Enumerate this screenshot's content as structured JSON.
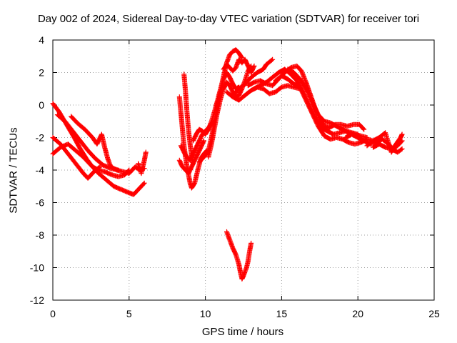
{
  "chart_data": {
    "type": "scatter",
    "title": "Day 002 of 2024, Sidereal Day-to-day VTEC variation (SDTVAR) for receiver tori",
    "xlabel": "GPS time / hours",
    "ylabel": "SDTVAR / TECUs",
    "xlim": [
      0,
      25
    ],
    "ylim": [
      -12,
      4
    ],
    "xticks": [
      0,
      5,
      10,
      15,
      20,
      25
    ],
    "yticks": [
      -12,
      -10,
      -8,
      -6,
      -4,
      -2,
      0,
      2,
      4
    ],
    "grid": true,
    "marker": "plus",
    "color": "#ff0000",
    "tracks": [
      [
        [
          0.0,
          0.1
        ],
        [
          0.4,
          -0.4
        ],
        [
          0.9,
          -1.2
        ],
        [
          1.4,
          -2.0
        ],
        [
          1.8,
          -2.7
        ],
        [
          2.2,
          -3.3
        ],
        [
          2.6,
          -3.8
        ],
        [
          3.0,
          -4.0
        ],
        [
          3.4,
          -4.1
        ],
        [
          3.9,
          -4.3
        ],
        [
          4.3,
          -4.4
        ],
        [
          4.7,
          -4.3
        ],
        [
          5.0,
          -4.0
        ]
      ],
      [
        [
          0.0,
          -2.0
        ],
        [
          0.5,
          -2.4
        ],
        [
          1.0,
          -3.0
        ],
        [
          1.5,
          -3.6
        ],
        [
          2.0,
          -4.2
        ],
        [
          2.3,
          -4.5
        ],
        [
          2.5,
          -4.3
        ],
        [
          2.8,
          -4.0
        ],
        [
          3.1,
          -3.8
        ]
      ],
      [
        [
          0.0,
          -3.0
        ],
        [
          0.5,
          -2.6
        ],
        [
          1.0,
          -2.4
        ],
        [
          1.5,
          -2.8
        ],
        [
          2.0,
          -3.2
        ],
        [
          2.5,
          -3.7
        ],
        [
          3.0,
          -4.2
        ],
        [
          3.5,
          -4.6
        ],
        [
          4.0,
          -5.0
        ],
        [
          4.5,
          -5.2
        ],
        [
          5.0,
          -5.4
        ],
        [
          5.3,
          -5.5
        ],
        [
          5.6,
          -5.2
        ],
        [
          6.0,
          -4.8
        ]
      ],
      [
        [
          1.2,
          -0.7
        ],
        [
          1.6,
          -1.1
        ],
        [
          2.1,
          -1.5
        ],
        [
          2.6,
          -2.0
        ],
        [
          2.9,
          -2.4
        ],
        [
          3.2,
          -1.8
        ],
        [
          3.4,
          -2.6
        ],
        [
          3.6,
          -3.3
        ],
        [
          3.8,
          -3.8
        ],
        [
          4.2,
          -4.0
        ],
        [
          4.6,
          -4.1
        ],
        [
          5.0,
          -4.2
        ],
        [
          5.4,
          -3.8
        ],
        [
          5.7,
          -4.0
        ],
        [
          6.0,
          -3.9
        ]
      ],
      [
        [
          0.3,
          -0.6
        ],
        [
          0.8,
          -1.0
        ],
        [
          1.3,
          -1.6
        ],
        [
          1.8,
          -2.2
        ],
        [
          2.3,
          -2.8
        ],
        [
          2.8,
          -3.3
        ],
        [
          3.3,
          -3.7
        ],
        [
          3.8,
          -3.9
        ],
        [
          4.3,
          -4.0
        ]
      ],
      [
        [
          5.6,
          -3.6
        ],
        [
          5.8,
          -4.2
        ],
        [
          6.0,
          -3.4
        ],
        [
          6.1,
          -2.9
        ]
      ],
      [
        [
          8.6,
          1.9
        ],
        [
          8.7,
          0.8
        ],
        [
          8.8,
          -0.5
        ],
        [
          8.9,
          -1.6
        ],
        [
          9.0,
          -2.4
        ],
        [
          9.1,
          -3.1
        ],
        [
          9.2,
          -3.6
        ]
      ],
      [
        [
          8.3,
          0.5
        ],
        [
          8.4,
          -0.5
        ],
        [
          8.5,
          -1.5
        ],
        [
          8.6,
          -2.5
        ],
        [
          8.7,
          -3.2
        ],
        [
          8.8,
          -3.8
        ],
        [
          8.9,
          -4.3
        ],
        [
          9.0,
          -4.8
        ],
        [
          9.1,
          -5.1
        ],
        [
          9.3,
          -4.8
        ],
        [
          9.5,
          -4.0
        ],
        [
          9.7,
          -3.3
        ],
        [
          9.9,
          -3.0
        ],
        [
          10.1,
          -2.8
        ]
      ],
      [
        [
          8.4,
          -2.5
        ],
        [
          8.6,
          -2.9
        ],
        [
          8.8,
          -3.2
        ],
        [
          9.0,
          -3.4
        ],
        [
          9.2,
          -3.0
        ],
        [
          9.4,
          -2.6
        ],
        [
          9.6,
          -2.2
        ],
        [
          9.8,
          -1.8
        ],
        [
          10.0,
          -1.6
        ],
        [
          10.2,
          -1.4
        ],
        [
          10.4,
          -1.2
        ],
        [
          10.6,
          -1.0
        ]
      ],
      [
        [
          8.3,
          -3.4
        ],
        [
          8.5,
          -3.8
        ],
        [
          8.7,
          -4.0
        ],
        [
          8.9,
          -4.2
        ],
        [
          9.1,
          -3.8
        ],
        [
          9.3,
          -3.4
        ],
        [
          9.5,
          -3.0
        ],
        [
          9.7,
          -2.6
        ],
        [
          9.9,
          -2.2
        ]
      ],
      [
        [
          9.2,
          -2.2
        ],
        [
          9.4,
          -1.8
        ],
        [
          9.6,
          -1.5
        ],
        [
          9.8,
          -1.6
        ],
        [
          10.0,
          -1.8
        ],
        [
          10.2,
          -1.5
        ],
        [
          10.4,
          -1.0
        ],
        [
          10.6,
          -0.4
        ],
        [
          10.8,
          0.3
        ],
        [
          11.0,
          1.0
        ],
        [
          11.2,
          1.8
        ],
        [
          11.4,
          2.6
        ],
        [
          11.6,
          3.1
        ],
        [
          11.8,
          3.3
        ],
        [
          12.0,
          3.4
        ],
        [
          12.2,
          3.2
        ],
        [
          12.4,
          2.9
        ]
      ],
      [
        [
          9.6,
          -3.5
        ],
        [
          9.9,
          -3.2
        ],
        [
          10.2,
          -2.8
        ],
        [
          10.4,
          -2.0
        ],
        [
          10.6,
          -1.0
        ],
        [
          10.8,
          0.0
        ],
        [
          11.0,
          0.8
        ],
        [
          11.2,
          1.6
        ],
        [
          11.4,
          2.0
        ],
        [
          11.6,
          1.7
        ],
        [
          11.8,
          1.3
        ],
        [
          12.0,
          1.0
        ],
        [
          12.2,
          1.1
        ]
      ],
      [
        [
          10.2,
          -3.2
        ],
        [
          10.4,
          -2.4
        ],
        [
          10.6,
          -1.4
        ],
        [
          10.8,
          -0.4
        ],
        [
          11.0,
          0.4
        ],
        [
          11.2,
          1.0
        ],
        [
          11.4,
          1.4
        ],
        [
          11.6,
          1.2
        ],
        [
          11.8,
          0.8
        ],
        [
          12.0,
          0.5
        ],
        [
          12.2,
          0.6
        ],
        [
          12.4,
          1.0
        ],
        [
          12.6,
          1.5
        ],
        [
          12.8,
          2.1
        ],
        [
          13.0,
          2.4
        ]
      ],
      [
        [
          11.2,
          2.2
        ],
        [
          11.4,
          2.5
        ],
        [
          11.6,
          2.3
        ],
        [
          11.8,
          2.1
        ],
        [
          12.0,
          2.3
        ],
        [
          12.2,
          2.8
        ],
        [
          12.4,
          2.6
        ],
        [
          12.6,
          2.8
        ],
        [
          12.8,
          2.4
        ],
        [
          13.0,
          2.0
        ],
        [
          13.2,
          2.4
        ]
      ],
      [
        [
          11.4,
          -7.8
        ],
        [
          11.6,
          -8.3
        ],
        [
          11.8,
          -8.8
        ],
        [
          12.0,
          -9.2
        ],
        [
          12.2,
          -9.8
        ],
        [
          12.3,
          -10.3
        ],
        [
          12.4,
          -10.7
        ],
        [
          12.5,
          -10.5
        ],
        [
          12.7,
          -10.0
        ],
        [
          12.8,
          -9.6
        ],
        [
          12.9,
          -9.0
        ],
        [
          13.0,
          -8.5
        ]
      ],
      [
        [
          11.8,
          0.6
        ],
        [
          12.2,
          1.0
        ],
        [
          12.6,
          1.3
        ],
        [
          13.0,
          1.7
        ],
        [
          13.4,
          2.0
        ],
        [
          13.8,
          2.2
        ],
        [
          14.0,
          2.5
        ],
        [
          14.4,
          2.8
        ]
      ],
      [
        [
          11.4,
          0.8
        ],
        [
          11.8,
          0.5
        ],
        [
          12.2,
          0.3
        ],
        [
          12.6,
          0.6
        ],
        [
          13.0,
          0.9
        ],
        [
          13.4,
          1.1
        ],
        [
          13.8,
          1.0
        ],
        [
          14.2,
          0.7
        ],
        [
          14.6,
          0.8
        ],
        [
          15.0,
          1.1
        ],
        [
          15.4,
          1.2
        ],
        [
          15.8,
          1.1
        ],
        [
          16.2,
          1.0
        ]
      ],
      [
        [
          12.8,
          1.2
        ],
        [
          13.2,
          1.4
        ],
        [
          13.6,
          1.5
        ],
        [
          14.0,
          1.3
        ],
        [
          14.4,
          1.2
        ],
        [
          14.8,
          1.6
        ],
        [
          15.2,
          2.0
        ],
        [
          15.6,
          2.3
        ],
        [
          16.0,
          2.4
        ],
        [
          16.3,
          2.1
        ],
        [
          16.6,
          1.4
        ],
        [
          16.9,
          0.6
        ],
        [
          17.2,
          -0.2
        ],
        [
          17.5,
          -0.9
        ],
        [
          17.8,
          -1.3
        ],
        [
          18.1,
          -1.4
        ],
        [
          18.5,
          -1.2
        ],
        [
          18.9,
          -1.2
        ],
        [
          19.3,
          -1.3
        ],
        [
          19.7,
          -1.2
        ],
        [
          20.1,
          -1.2
        ],
        [
          20.4,
          -1.5
        ]
      ],
      [
        [
          13.2,
          1.0
        ],
        [
          13.6,
          1.2
        ],
        [
          14.0,
          1.4
        ],
        [
          14.4,
          1.7
        ],
        [
          14.8,
          2.0
        ],
        [
          15.2,
          2.2
        ],
        [
          15.6,
          1.9
        ],
        [
          16.0,
          1.5
        ],
        [
          16.4,
          0.8
        ],
        [
          16.8,
          0.0
        ],
        [
          17.2,
          -0.8
        ],
        [
          17.6,
          -1.4
        ],
        [
          18.0,
          -1.6
        ],
        [
          18.4,
          -1.8
        ],
        [
          18.8,
          -1.7
        ],
        [
          19.2,
          -1.6
        ],
        [
          19.6,
          -1.7
        ],
        [
          20.0,
          -1.8
        ]
      ],
      [
        [
          14.6,
          1.5
        ],
        [
          15.0,
          1.8
        ],
        [
          15.4,
          1.6
        ],
        [
          15.8,
          1.3
        ],
        [
          16.2,
          1.1
        ],
        [
          16.6,
          0.3
        ],
        [
          17.0,
          -0.5
        ],
        [
          17.4,
          -1.3
        ],
        [
          17.8,
          -1.9
        ],
        [
          18.2,
          -2.1
        ],
        [
          18.6,
          -2.0
        ],
        [
          19.0,
          -2.1
        ],
        [
          19.4,
          -2.3
        ],
        [
          19.8,
          -2.4
        ],
        [
          20.2,
          -2.3
        ],
        [
          20.6,
          -2.1
        ],
        [
          21.0,
          -2.2
        ]
      ],
      [
        [
          15.4,
          2.2
        ],
        [
          15.8,
          2.0
        ],
        [
          16.2,
          1.6
        ],
        [
          16.6,
          1.0
        ],
        [
          17.0,
          0.2
        ],
        [
          17.4,
          -0.6
        ],
        [
          17.8,
          -1.0
        ],
        [
          18.2,
          -1.1
        ],
        [
          18.6,
          -1.3
        ],
        [
          19.0,
          -1.5
        ],
        [
          19.4,
          -1.7
        ],
        [
          19.8,
          -1.8
        ],
        [
          20.2,
          -1.9
        ],
        [
          20.6,
          -2.0
        ]
      ],
      [
        [
          19.2,
          -2.0
        ],
        [
          19.6,
          -1.8
        ],
        [
          20.0,
          -2.0
        ],
        [
          20.4,
          -2.2
        ],
        [
          20.8,
          -2.4
        ],
        [
          21.2,
          -2.3
        ],
        [
          21.6,
          -2.1
        ],
        [
          22.0,
          -2.4
        ],
        [
          22.3,
          -2.7
        ],
        [
          22.6,
          -2.5
        ],
        [
          22.9,
          -2.2
        ]
      ],
      [
        [
          20.6,
          -2.5
        ],
        [
          21.0,
          -2.2
        ],
        [
          21.4,
          -2.0
        ],
        [
          21.8,
          -1.7
        ],
        [
          22.0,
          -2.3
        ],
        [
          22.2,
          -2.9
        ],
        [
          22.5,
          -2.4
        ],
        [
          22.8,
          -2.0
        ],
        [
          22.9,
          -1.8
        ]
      ],
      [
        [
          21.0,
          -2.6
        ],
        [
          21.4,
          -2.4
        ],
        [
          21.8,
          -2.6
        ],
        [
          22.2,
          -2.7
        ],
        [
          22.6,
          -2.9
        ],
        [
          22.9,
          -2.7
        ]
      ]
    ]
  }
}
